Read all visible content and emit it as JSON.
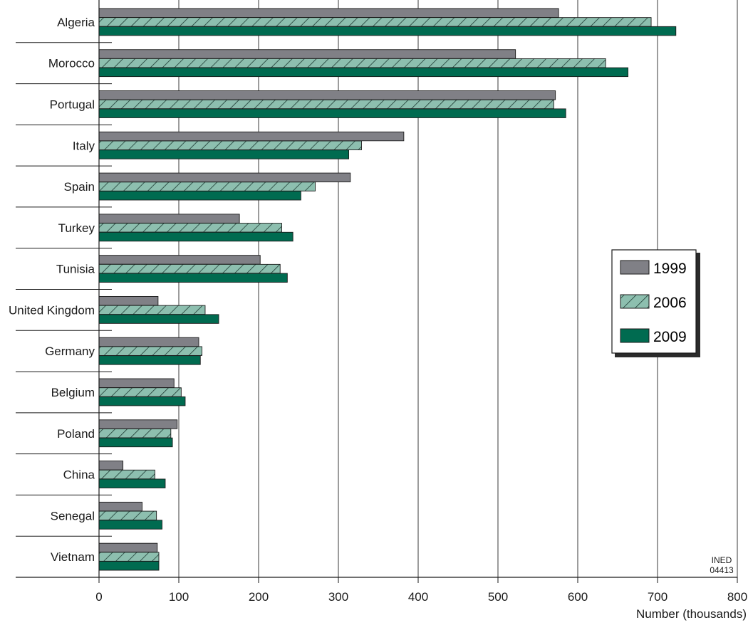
{
  "chart_data": {
    "type": "bar",
    "orientation": "horizontal",
    "categories": [
      "Algeria",
      "Morocco",
      "Portugal",
      "Italy",
      "Spain",
      "Turkey",
      "Tunisia",
      "United Kingdom",
      "Germany",
      "Belgium",
      "Poland",
      "China",
      "Senegal",
      "Vietnam"
    ],
    "series": [
      {
        "name": "1999",
        "color": "#808086",
        "pattern": "solid",
        "values": [
          576,
          522,
          572,
          382,
          315,
          176,
          202,
          74,
          125,
          94,
          98,
          30,
          54,
          73
        ]
      },
      {
        "name": "2006",
        "color": "#8dbfaf",
        "pattern": "hatch",
        "values": [
          692,
          635,
          570,
          329,
          271,
          229,
          227,
          133,
          129,
          103,
          90,
          70,
          72,
          75
        ]
      },
      {
        "name": "2009",
        "color": "#006b50",
        "pattern": "solid",
        "values": [
          723,
          663,
          585,
          313,
          253,
          243,
          236,
          150,
          127,
          108,
          92,
          83,
          79,
          75
        ]
      }
    ],
    "xlabel": "Number (thousands)",
    "ylabel": "",
    "xlim": [
      0,
      800
    ],
    "xticks": [
      0,
      100,
      200,
      300,
      400,
      500,
      600,
      700,
      800
    ],
    "grid": "vertical",
    "legend_position": "right",
    "credit": [
      "INED",
      "04413"
    ]
  }
}
